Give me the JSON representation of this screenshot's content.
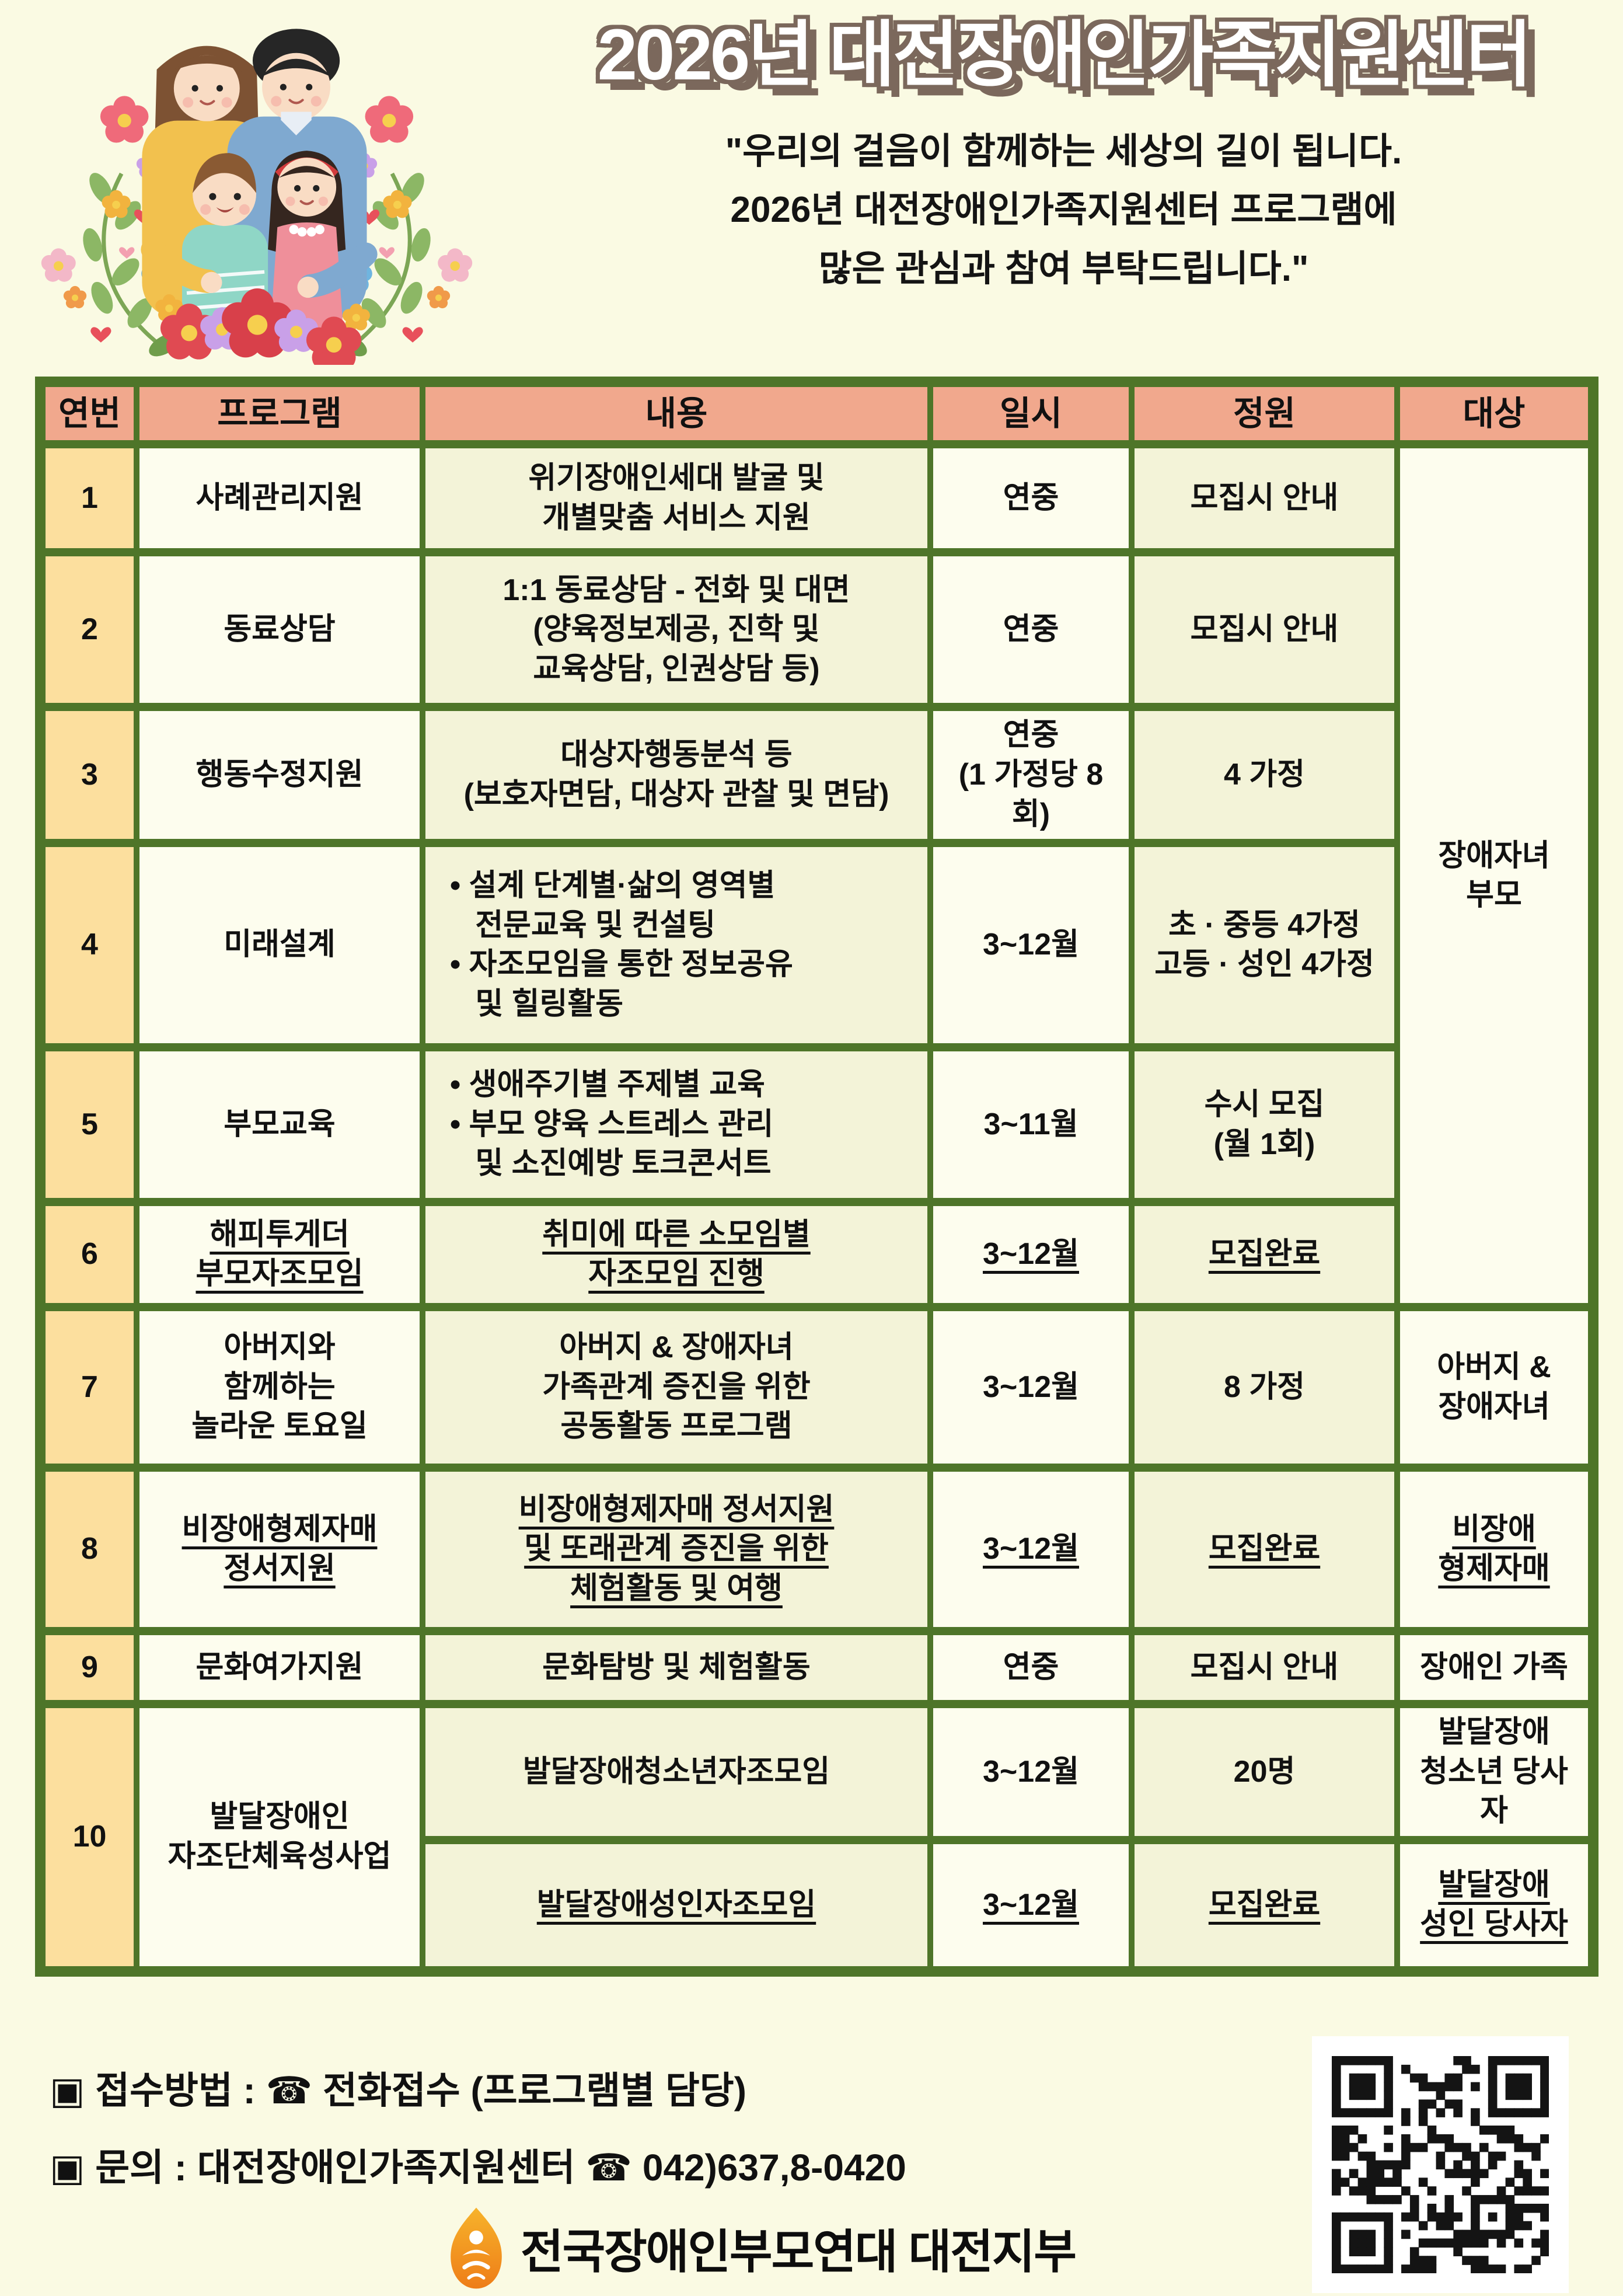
{
  "header": {
    "title": "2026년 대전장애인가족지원센터",
    "quote": "\"우리의 걸음이 함께하는 세상의 길이 됩니다.\n2026년 대전장애인가족지원센터 프로그램에\n많은 관심과 참여 부탁드립니다.\""
  },
  "table": {
    "columns": [
      "연번",
      "프로그램",
      "내용",
      "일시",
      "정원",
      "대상"
    ],
    "target_rows_1_6": "장애자녀\n부모",
    "rows": [
      {
        "no": "1",
        "program": "사례관리지원",
        "content": "위기장애인세대 발굴 및\n개별맞춤 서비스 지원",
        "when": "연중",
        "quota": "모집시 안내"
      },
      {
        "no": "2",
        "program": "동료상담",
        "content": "1:1 동료상담 - 전화 및 대면\n(양육정보제공, 진학 및\n교육상담, 인권상담 등)",
        "when": "연중",
        "quota": "모집시 안내"
      },
      {
        "no": "3",
        "program": "행동수정지원",
        "content": "대상자행동분석 등\n(보호자면담, 대상자 관찰 및 면담)",
        "when": "연중\n(1 가정당 8회)",
        "quota": "4 가정"
      },
      {
        "no": "4",
        "program": "미래설계",
        "content": "• 설계 단계별·삶의 영역별\n   전문교육 및 컨설팅\n• 자조모임을 통한 정보공유\n   및 힐링활동",
        "when": "3~12월",
        "quota": "초 · 중등 4가정\n고등 · 성인 4가정"
      },
      {
        "no": "5",
        "program": "부모교육",
        "content": "• 생애주기별 주제별 교육\n• 부모 양육 스트레스 관리\n   및 소진예방 토크콘서트",
        "when": "3~11월",
        "quota": "수시 모집\n(월 1회)"
      },
      {
        "no": "6",
        "program": "해피투게더\n부모자조모임",
        "content": "취미에 따른 소모임별\n자조모임 진행",
        "when": "3~12월",
        "quota": "모집완료"
      },
      {
        "no": "7",
        "program": "아버지와\n함께하는\n놀라운 토요일",
        "content": "아버지 & 장애자녀\n가족관계 증진을 위한\n공동활동 프로그램",
        "when": "3~12월",
        "quota": "8 가정",
        "target": "아버지 &\n장애자녀"
      },
      {
        "no": "8",
        "program": "비장애형제자매\n정서지원",
        "content": "비장애형제자매 정서지원\n및 또래관계 증진을 위한\n체험활동 및 여행",
        "when": "3~12월",
        "quota": "모집완료",
        "target": "비장애\n형제자매"
      },
      {
        "no": "9",
        "program": "문화여가지원",
        "content": "문화탐방 및 체험활동",
        "when": "연중",
        "quota": "모집시 안내",
        "target": "장애인 가족"
      },
      {
        "no": "10",
        "program": "발달장애인\n자조단체육성사업",
        "sub": [
          {
            "content": "발달장애청소년자조모임",
            "when": "3~12월",
            "quota": "20명",
            "target": "발달장애\n청소년 당사자"
          },
          {
            "content": "발달장애성인자조모임",
            "when": "3~12월",
            "quota": "모집완료",
            "target": "발달장애\n성인 당사자"
          }
        ]
      }
    ]
  },
  "footer": {
    "reception": "▣ 접수방법 : ☎ 전화접수 (프로그램별 담당)",
    "inquiry": "▣ 문의 : 대전장애인가족지원센터 ☎ 042)637,8-0420",
    "org": "전국장애인부모연대 대전지부"
  },
  "colors": {
    "page_bg": "#fafae3",
    "table_border_green": "#4e7529",
    "header_cell_salmon": "#f1a88d",
    "number_col_yellow": "#fcdf9e",
    "cell_light": "#fdfdee",
    "cell_dark": "#f3f3d8",
    "title_fill": "#ffffff",
    "title_outline_brown": "#7b685c"
  },
  "icons": {
    "phone": "☎",
    "list_marker": "▣"
  }
}
